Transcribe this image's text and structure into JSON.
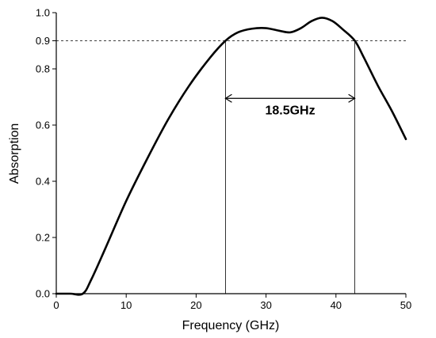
{
  "chart_data": {
    "type": "line",
    "xlabel": "Frequency (GHz)",
    "ylabel": "Absorption",
    "xlim": [
      0,
      50
    ],
    "ylim": [
      0,
      1.0
    ],
    "x_ticks": [
      0,
      10,
      20,
      30,
      40,
      50
    ],
    "x_tick_labels": [
      "0",
      "10",
      "20",
      "30",
      "40",
      "50"
    ],
    "y_ticks": [
      0.0,
      0.2,
      0.4,
      0.6,
      0.8,
      0.9,
      1.0
    ],
    "y_tick_labels": [
      "0.0",
      "0.2",
      "0.4",
      "0.6",
      "0.8",
      "0.9",
      "1.0"
    ],
    "grid": false,
    "legend": "none",
    "series": [
      {
        "color": "#000000",
        "x": [
          0,
          2,
          3.8,
          5,
          7,
          10,
          13,
          16,
          19,
          22,
          24.2,
          26,
          28,
          30,
          32,
          33.5,
          35,
          36.5,
          38,
          39.5,
          41,
          42.7,
          44,
          46,
          48,
          50
        ],
        "y": [
          0,
          0,
          0,
          0.05,
          0.16,
          0.33,
          0.48,
          0.62,
          0.74,
          0.84,
          0.9,
          0.93,
          0.943,
          0.945,
          0.935,
          0.93,
          0.945,
          0.97,
          0.982,
          0.97,
          0.94,
          0.9,
          0.84,
          0.74,
          0.65,
          0.55
        ]
      }
    ],
    "annotations": {
      "threshold_y": 0.9,
      "band_start_x": 24.2,
      "band_end_x": 42.7,
      "band_arrow_y": 0.695,
      "bandwidth_label": "18.5GHz"
    }
  }
}
